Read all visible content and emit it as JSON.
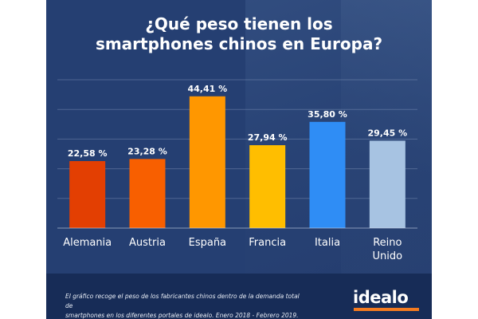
{
  "title_lines": [
    "¿Qué peso tienen los",
    "smartphones chinos en Europa?"
  ],
  "footer": {
    "note_lines": [
      "El gráfico recoge el peso de los fabricantes chinos dentro de la demanda total de",
      "smartphones en los diferentes portales de idealo. Enero 2018 - Febrero 2019."
    ],
    "logo": "idealo"
  },
  "colors": {
    "background": "#253f72",
    "footer": "#172c57",
    "logo_accent": "#f47b20"
  },
  "chart_data": {
    "type": "bar",
    "title": "¿Qué peso tienen los smartphones chinos en Europa?",
    "categories": [
      "Alemania",
      "Austria",
      "España",
      "Francia",
      "Italia",
      "Reino Unido"
    ],
    "category_lines": [
      [
        "Alemania"
      ],
      [
        "Austria"
      ],
      [
        "España"
      ],
      [
        "Francia"
      ],
      [
        "Italia"
      ],
      [
        "Reino",
        "Unido"
      ]
    ],
    "values": [
      22.58,
      23.28,
      44.41,
      27.94,
      35.8,
      29.45
    ],
    "value_labels": [
      "22,58 %",
      "23,28 %",
      "44,41 %",
      "27,94 %",
      "35,80 %",
      "29,45 %"
    ],
    "bar_colors": [
      "#e33f02",
      "#f85f00",
      "#ff9700",
      "#ffbe00",
      "#2f8df5",
      "#a7c3e2"
    ],
    "ylim": [
      0,
      50
    ],
    "grid": true,
    "xlabel": "",
    "ylabel": ""
  }
}
